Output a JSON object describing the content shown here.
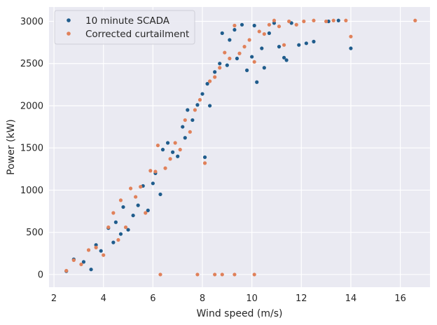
{
  "chart_data": {
    "type": "scatter",
    "xlabel": "Wind speed (m/s)",
    "ylabel": "Power (kW)",
    "xlim": [
      1.8,
      17.2
    ],
    "ylim": [
      -150,
      3170
    ],
    "xticks": [
      2,
      4,
      6,
      8,
      10,
      12,
      14,
      16
    ],
    "yticks": [
      0,
      500,
      1000,
      1500,
      2000,
      2500,
      3000
    ],
    "grid": true,
    "legend_position": "top-left",
    "background_color": "#eaeaf2",
    "series": [
      {
        "name": "10 minute SCADA",
        "color": "#1f5c8c",
        "points": [
          [
            2.5,
            40
          ],
          [
            2.8,
            180
          ],
          [
            3.2,
            150
          ],
          [
            3.5,
            60
          ],
          [
            3.7,
            350
          ],
          [
            3.9,
            280
          ],
          [
            4.2,
            550
          ],
          [
            4.4,
            380
          ],
          [
            4.5,
            620
          ],
          [
            4.7,
            480
          ],
          [
            4.8,
            800
          ],
          [
            5.0,
            530
          ],
          [
            5.2,
            700
          ],
          [
            5.4,
            820
          ],
          [
            5.6,
            1050
          ],
          [
            5.8,
            760
          ],
          [
            6.0,
            1080
          ],
          [
            6.1,
            1200
          ],
          [
            6.3,
            950
          ],
          [
            6.4,
            1480
          ],
          [
            6.6,
            1560
          ],
          [
            6.8,
            1450
          ],
          [
            7.0,
            1400
          ],
          [
            7.2,
            1750
          ],
          [
            7.3,
            1620
          ],
          [
            7.4,
            1950
          ],
          [
            7.6,
            1830
          ],
          [
            7.8,
            2010
          ],
          [
            8.0,
            2140
          ],
          [
            8.1,
            1390
          ],
          [
            8.2,
            2260
          ],
          [
            8.3,
            2000
          ],
          [
            8.5,
            2400
          ],
          [
            8.7,
            2500
          ],
          [
            8.8,
            2860
          ],
          [
            9.0,
            2480
          ],
          [
            9.1,
            2780
          ],
          [
            9.3,
            2900
          ],
          [
            9.4,
            2560
          ],
          [
            9.6,
            2960
          ],
          [
            9.8,
            2420
          ],
          [
            10.0,
            2580
          ],
          [
            10.1,
            2950
          ],
          [
            10.2,
            2280
          ],
          [
            10.4,
            2680
          ],
          [
            10.5,
            2450
          ],
          [
            10.7,
            2860
          ],
          [
            10.9,
            2980
          ],
          [
            11.1,
            2700
          ],
          [
            11.3,
            2570
          ],
          [
            11.4,
            2540
          ],
          [
            11.6,
            2980
          ],
          [
            11.9,
            2720
          ],
          [
            12.2,
            2740
          ],
          [
            12.5,
            2760
          ],
          [
            13.1,
            3000
          ],
          [
            13.5,
            3010
          ],
          [
            14.0,
            2680
          ]
        ]
      },
      {
        "name": "Corrected curtailment",
        "color": "#e0815a",
        "points": [
          [
            2.5,
            45
          ],
          [
            2.8,
            170
          ],
          [
            3.1,
            120
          ],
          [
            3.4,
            290
          ],
          [
            3.7,
            320
          ],
          [
            4.0,
            230
          ],
          [
            4.2,
            560
          ],
          [
            4.4,
            730
          ],
          [
            4.6,
            410
          ],
          [
            4.7,
            880
          ],
          [
            4.9,
            560
          ],
          [
            5.1,
            1020
          ],
          [
            5.3,
            920
          ],
          [
            5.5,
            1040
          ],
          [
            5.7,
            730
          ],
          [
            5.9,
            1230
          ],
          [
            6.1,
            1220
          ],
          [
            6.2,
            1530
          ],
          [
            6.3,
            0
          ],
          [
            6.5,
            1260
          ],
          [
            6.7,
            1370
          ],
          [
            6.9,
            1560
          ],
          [
            7.1,
            1480
          ],
          [
            7.3,
            1830
          ],
          [
            7.5,
            1690
          ],
          [
            7.7,
            1950
          ],
          [
            7.9,
            2070
          ],
          [
            8.1,
            1320
          ],
          [
            8.3,
            2290
          ],
          [
            8.5,
            2340
          ],
          [
            8.7,
            2450
          ],
          [
            8.9,
            2630
          ],
          [
            9.1,
            2560
          ],
          [
            9.3,
            2950
          ],
          [
            9.5,
            2620
          ],
          [
            9.7,
            2700
          ],
          [
            9.9,
            2780
          ],
          [
            10.1,
            2520
          ],
          [
            10.3,
            2880
          ],
          [
            10.5,
            2850
          ],
          [
            10.7,
            2960
          ],
          [
            10.9,
            3010
          ],
          [
            11.1,
            2940
          ],
          [
            11.3,
            2720
          ],
          [
            11.5,
            3000
          ],
          [
            11.8,
            2960
          ],
          [
            12.1,
            3000
          ],
          [
            12.5,
            3010
          ],
          [
            13.0,
            3000
          ],
          [
            13.3,
            3010
          ],
          [
            13.8,
            3010
          ],
          [
            14.0,
            2820
          ],
          [
            16.6,
            3010
          ],
          [
            7.8,
            0
          ],
          [
            8.5,
            0
          ],
          [
            8.8,
            0
          ],
          [
            9.3,
            0
          ],
          [
            10.1,
            0
          ]
        ]
      }
    ]
  }
}
